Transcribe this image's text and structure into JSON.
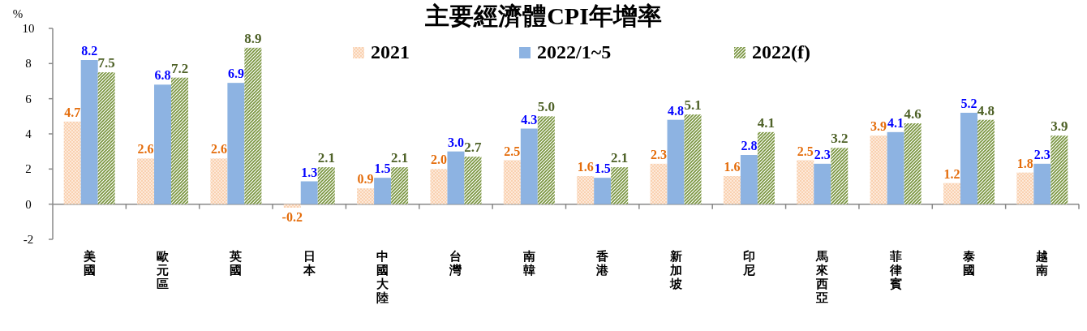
{
  "chart_data": {
    "type": "bar",
    "title": "主要經濟體CPI年增率",
    "ylabel": "%",
    "categories": [
      "美國",
      "歐元區",
      "英國",
      "日本",
      "中國大陸",
      "台灣",
      "南韓",
      "香港",
      "新加坡",
      "印尼",
      "馬來西亞",
      "菲律賓",
      "泰國",
      "越南"
    ],
    "series": [
      {
        "name": "2021",
        "color": "#f8c9a4",
        "values": [
          4.7,
          2.6,
          2.6,
          -0.2,
          0.9,
          2.0,
          2.5,
          1.6,
          2.3,
          1.6,
          2.5,
          3.9,
          1.2,
          1.8
        ],
        "value_labels": [
          "4.7",
          "2.6",
          "2.6",
          "-0.2",
          "0.9",
          "2.0",
          "2.5",
          "1.6",
          "2.3",
          "1.6",
          "2.5",
          "3.9",
          "1.2",
          "1.8"
        ]
      },
      {
        "name": "2022/1~5",
        "color": "#8db3e2",
        "values": [
          8.2,
          6.8,
          6.9,
          1.3,
          1.5,
          3.0,
          4.3,
          1.5,
          4.8,
          2.8,
          2.3,
          4.1,
          5.2,
          2.3
        ],
        "value_labels": [
          "8.2",
          "6.8",
          "6.9",
          "1.3",
          "1.5",
          "3.0",
          "4.3",
          "1.5",
          "4.8",
          "2.8",
          "2.3",
          "4.1",
          "5.2",
          "2.3"
        ]
      },
      {
        "name": "2022(f)",
        "color": "#77933c",
        "values": [
          7.5,
          7.2,
          8.9,
          2.1,
          2.1,
          2.7,
          5.0,
          2.1,
          5.1,
          4.1,
          3.2,
          4.6,
          4.8,
          3.9
        ],
        "value_labels": [
          "7.5",
          "7.2",
          "8.9",
          "2.1",
          "2.1",
          "2.7",
          "5.0",
          "2.1",
          "5.1",
          "4.1",
          "3.2",
          "4.6",
          "4.8",
          "3.9"
        ]
      }
    ],
    "ylim": [
      -2,
      10
    ],
    "yticks": [
      -2,
      0,
      2,
      4,
      6,
      8,
      10
    ],
    "legend": "top"
  }
}
